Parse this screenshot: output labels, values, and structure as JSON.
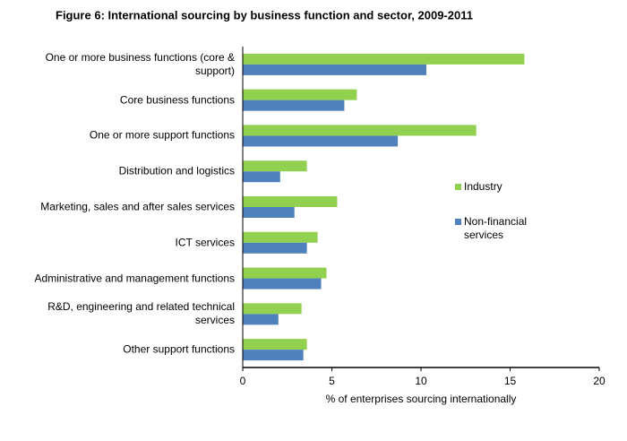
{
  "chart_data": {
    "type": "barh",
    "title": "Figure 6: International sourcing by business function and sector, 2009-2011",
    "categories": [
      "One or more business functions (core & support)",
      "Core business functions",
      "One or more support functions",
      "Distribution and logistics",
      "Marketing, sales and after sales services",
      "ICT services",
      "Administrative and management functions",
      "R&D, engineering and related technical services",
      "Other support functions"
    ],
    "series": [
      {
        "name": "Industry",
        "color": "#92d050",
        "values": [
          15.8,
          6.4,
          13.1,
          3.6,
          5.3,
          4.2,
          4.7,
          3.3,
          3.6
        ]
      },
      {
        "name": "Non-financial services",
        "color": "#4f81bd",
        "values": [
          10.3,
          5.7,
          8.7,
          2.1,
          2.9,
          3.6,
          4.4,
          2.0,
          3.4
        ]
      }
    ],
    "xlim": [
      0,
      20
    ],
    "xticks": [
      0,
      5,
      10,
      15,
      20
    ],
    "xlabel": "% of enterprises sourcing internationally",
    "legend": "right"
  }
}
